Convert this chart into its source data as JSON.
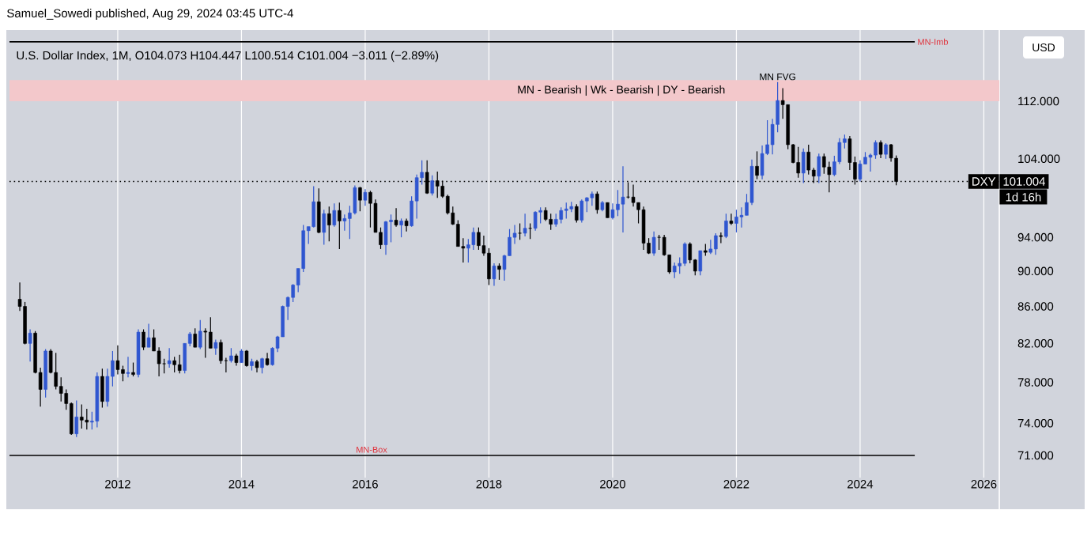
{
  "chart_data": {
    "type": "candlestick",
    "title": "U.S. Dollar Index, 1M,  O104.073  H104.447  L100.514  C101.004  −3.011 (−2.89%)",
    "annotations": [
      "Samuel_Sowedi published, Aug 29, 2024 03:45 UTC-4",
      "MN - Bearish | Wk - Bearish | DY - Bearish",
      {
        "text": "MN FVG",
        "x": "2022-09",
        "y": 114.8
      },
      "USD",
      "101.004",
      "1d 16h"
    ],
    "x": [
      "2010-06",
      "2010-07",
      "2010-08",
      "2010-09",
      "2010-10",
      "2010-11",
      "2010-12",
      "2011-01",
      "2011-02",
      "2011-03",
      "2011-04",
      "2011-05",
      "2011-06",
      "2011-07",
      "2011-08",
      "2011-09",
      "2011-10",
      "2011-11",
      "2011-12",
      "2012-01",
      "2012-02",
      "2012-03",
      "2012-04",
      "2012-05",
      "2012-06",
      "2012-07",
      "2012-08",
      "2012-09",
      "2012-10",
      "2012-11",
      "2012-12",
      "2013-01",
      "2013-02",
      "2013-03",
      "2013-04",
      "2013-05",
      "2013-06",
      "2013-07",
      "2013-08",
      "2013-09",
      "2013-10",
      "2013-11",
      "2013-12",
      "2014-01",
      "2014-02",
      "2014-03",
      "2014-04",
      "2014-05",
      "2014-06",
      "2014-07",
      "2014-08",
      "2014-09",
      "2014-10",
      "2014-11",
      "2014-12",
      "2015-01",
      "2015-02",
      "2015-03",
      "2015-04",
      "2015-05",
      "2015-06",
      "2015-07",
      "2015-08",
      "2015-09",
      "2015-10",
      "2015-11",
      "2015-12",
      "2016-01",
      "2016-02",
      "2016-03",
      "2016-04",
      "2016-05",
      "2016-06",
      "2016-07",
      "2016-08",
      "2016-09",
      "2016-10",
      "2016-11",
      "2016-12",
      "2017-01",
      "2017-02",
      "2017-03",
      "2017-04",
      "2017-05",
      "2017-06",
      "2017-07",
      "2017-08",
      "2017-09",
      "2017-10",
      "2017-11",
      "2017-12",
      "2018-01",
      "2018-02",
      "2018-03",
      "2018-04",
      "2018-05",
      "2018-06",
      "2018-07",
      "2018-08",
      "2018-09",
      "2018-10",
      "2018-11",
      "2018-12",
      "2019-01",
      "2019-02",
      "2019-03",
      "2019-04",
      "2019-05",
      "2019-06",
      "2019-07",
      "2019-08",
      "2019-09",
      "2019-10",
      "2019-11",
      "2019-12",
      "2020-01",
      "2020-02",
      "2020-03",
      "2020-04",
      "2020-05",
      "2020-06",
      "2020-07",
      "2020-08",
      "2020-09",
      "2020-10",
      "2020-11",
      "2020-12",
      "2021-01",
      "2021-02",
      "2021-03",
      "2021-04",
      "2021-05",
      "2021-06",
      "2021-07",
      "2021-08",
      "2021-09",
      "2021-10",
      "2021-11",
      "2021-12",
      "2022-01",
      "2022-02",
      "2022-03",
      "2022-04",
      "2022-05",
      "2022-06",
      "2022-07",
      "2022-08",
      "2022-09",
      "2022-10",
      "2022-11",
      "2022-12",
      "2023-01",
      "2023-02",
      "2023-03",
      "2023-04",
      "2023-05",
      "2023-06",
      "2023-07",
      "2023-08",
      "2023-09",
      "2023-10",
      "2023-11",
      "2023-12",
      "2024-01",
      "2024-02",
      "2024-03",
      "2024-04",
      "2024-05",
      "2024-06",
      "2024-07",
      "2024-08"
    ],
    "ohlc": [
      [
        86.8,
        88.7,
        85.5,
        86.0
      ],
      [
        86.0,
        86.5,
        81.9,
        82.0
      ],
      [
        82.0,
        83.5,
        80.1,
        83.1
      ],
      [
        83.1,
        83.3,
        78.9,
        79.0
      ],
      [
        79.0,
        79.5,
        75.6,
        77.3
      ],
      [
        77.3,
        81.4,
        76.5,
        81.2
      ],
      [
        81.2,
        81.4,
        78.9,
        79.0
      ],
      [
        79.0,
        81.0,
        77.3,
        77.6
      ],
      [
        77.6,
        78.5,
        76.1,
        76.9
      ],
      [
        76.9,
        77.3,
        75.3,
        75.9
      ],
      [
        75.9,
        76.0,
        72.9,
        73.0
      ],
      [
        73.0,
        76.2,
        72.7,
        74.6
      ],
      [
        74.6,
        75.8,
        73.5,
        74.3
      ],
      [
        74.3,
        75.4,
        73.4,
        74.1
      ],
      [
        74.1,
        75.1,
        73.4,
        74.2
      ],
      [
        74.2,
        79.0,
        73.6,
        78.6
      ],
      [
        78.6,
        79.4,
        75.5,
        76.1
      ],
      [
        76.1,
        79.4,
        75.6,
        78.6
      ],
      [
        78.6,
        81.2,
        77.6,
        80.2
      ],
      [
        80.2,
        81.8,
        78.8,
        79.3
      ],
      [
        79.3,
        79.7,
        78.1,
        78.9
      ],
      [
        78.9,
        80.6,
        78.5,
        79.0
      ],
      [
        79.0,
        80.0,
        78.6,
        78.8
      ],
      [
        78.8,
        83.5,
        78.5,
        83.2
      ],
      [
        83.2,
        83.5,
        81.3,
        81.6
      ],
      [
        81.6,
        84.1,
        81.6,
        82.6
      ],
      [
        82.6,
        83.5,
        81.2,
        81.2
      ],
      [
        81.2,
        81.6,
        78.6,
        79.9
      ],
      [
        79.9,
        80.4,
        78.9,
        79.9
      ],
      [
        79.9,
        81.5,
        79.5,
        80.2
      ],
      [
        80.2,
        80.6,
        79.0,
        79.8
      ],
      [
        79.8,
        80.8,
        78.9,
        79.2
      ],
      [
        79.2,
        82.0,
        78.9,
        82.0
      ],
      [
        82.0,
        83.2,
        81.7,
        83.0
      ],
      [
        83.0,
        83.6,
        81.6,
        81.6
      ],
      [
        81.6,
        84.5,
        81.4,
        83.3
      ],
      [
        83.3,
        83.6,
        80.5,
        83.2
      ],
      [
        83.2,
        84.8,
        81.5,
        81.5
      ],
      [
        81.5,
        82.4,
        80.8,
        82.1
      ],
      [
        82.1,
        82.4,
        79.9,
        80.2
      ],
      [
        80.2,
        80.5,
        79.0,
        80.2
      ],
      [
        80.2,
        81.5,
        80.0,
        80.7
      ],
      [
        80.7,
        80.9,
        79.7,
        80.0
      ],
      [
        80.0,
        81.4,
        80.0,
        81.2
      ],
      [
        81.2,
        81.3,
        79.6,
        79.7
      ],
      [
        79.7,
        80.4,
        79.2,
        80.1
      ],
      [
        80.1,
        80.3,
        79.0,
        79.5
      ],
      [
        79.5,
        80.5,
        78.9,
        80.4
      ],
      [
        80.4,
        81.0,
        79.7,
        79.8
      ],
      [
        79.8,
        81.6,
        79.7,
        81.5
      ],
      [
        81.5,
        82.8,
        81.1,
        82.7
      ],
      [
        82.7,
        86.1,
        82.7,
        86.0
      ],
      [
        86.0,
        87.1,
        84.5,
        87.0
      ],
      [
        87.0,
        88.5,
        86.5,
        88.4
      ],
      [
        88.4,
        90.3,
        87.6,
        90.3
      ],
      [
        90.3,
        95.5,
        89.9,
        94.8
      ],
      [
        94.8,
        95.3,
        93.2,
        95.3
      ],
      [
        95.3,
        100.4,
        95.2,
        98.4
      ],
      [
        98.4,
        100.1,
        94.5,
        94.6
      ],
      [
        94.6,
        97.4,
        93.1,
        96.9
      ],
      [
        96.9,
        97.8,
        93.5,
        95.5
      ],
      [
        95.5,
        98.2,
        95.3,
        97.3
      ],
      [
        97.3,
        98.3,
        92.6,
        96.0
      ],
      [
        96.0,
        96.8,
        94.8,
        96.3
      ],
      [
        96.3,
        97.9,
        93.8,
        97.0
      ],
      [
        97.0,
        100.5,
        96.8,
        100.2
      ],
      [
        100.2,
        100.3,
        97.2,
        98.6
      ],
      [
        98.6,
        100.0,
        97.9,
        99.6
      ],
      [
        99.6,
        99.8,
        95.2,
        98.2
      ],
      [
        98.2,
        98.7,
        94.6,
        94.6
      ],
      [
        94.6,
        95.2,
        92.6,
        93.1
      ],
      [
        93.1,
        96.0,
        91.9,
        95.9
      ],
      [
        95.9,
        96.8,
        93.4,
        96.1
      ],
      [
        96.1,
        97.6,
        95.3,
        95.5
      ],
      [
        95.5,
        96.3,
        94.0,
        96.0
      ],
      [
        96.0,
        96.3,
        94.7,
        95.4
      ],
      [
        95.4,
        99.1,
        95.3,
        98.5
      ],
      [
        98.5,
        101.9,
        96.3,
        101.5
      ],
      [
        101.5,
        103.8,
        100.6,
        102.2
      ],
      [
        102.2,
        103.8,
        99.4,
        99.5
      ],
      [
        99.5,
        101.8,
        99.2,
        101.1
      ],
      [
        101.1,
        102.3,
        98.9,
        100.4
      ],
      [
        100.4,
        101.1,
        98.9,
        99.1
      ],
      [
        99.1,
        99.3,
        96.8,
        97.0
      ],
      [
        97.0,
        97.8,
        95.5,
        95.6
      ],
      [
        95.6,
        96.1,
        92.9,
        92.9
      ],
      [
        92.9,
        93.9,
        91.0,
        92.7
      ],
      [
        92.7,
        93.8,
        91.0,
        93.1
      ],
      [
        93.1,
        95.2,
        92.5,
        94.6
      ],
      [
        94.6,
        95.2,
        92.5,
        93.0
      ],
      [
        93.0,
        94.2,
        91.8,
        92.1
      ],
      [
        92.1,
        92.7,
        88.4,
        89.1
      ],
      [
        89.1,
        90.9,
        88.3,
        90.6
      ],
      [
        90.6,
        90.9,
        89.0,
        90.2
      ],
      [
        90.2,
        91.9,
        88.9,
        91.8
      ],
      [
        91.8,
        95.0,
        91.8,
        94.0
      ],
      [
        94.0,
        95.5,
        93.2,
        94.5
      ],
      [
        94.5,
        95.7,
        93.7,
        94.5
      ],
      [
        94.5,
        96.9,
        94.1,
        95.1
      ],
      [
        95.1,
        95.7,
        93.8,
        95.1
      ],
      [
        95.1,
        97.2,
        94.8,
        97.1
      ],
      [
        97.1,
        97.7,
        95.7,
        97.3
      ],
      [
        97.3,
        97.7,
        96.0,
        96.2
      ],
      [
        96.2,
        96.9,
        94.9,
        95.6
      ],
      [
        95.6,
        96.9,
        95.3,
        96.2
      ],
      [
        96.2,
        97.7,
        95.7,
        97.3
      ],
      [
        97.3,
        98.3,
        96.3,
        97.5
      ],
      [
        97.5,
        98.4,
        97.1,
        97.8
      ],
      [
        97.8,
        98.1,
        95.8,
        96.1
      ],
      [
        96.1,
        98.7,
        95.8,
        98.5
      ],
      [
        98.5,
        99.0,
        97.1,
        98.9
      ],
      [
        98.9,
        99.7,
        97.9,
        99.4
      ],
      [
        99.4,
        99.7,
        96.9,
        97.4
      ],
      [
        97.4,
        98.5,
        97.2,
        98.3
      ],
      [
        98.3,
        98.3,
        96.4,
        96.4
      ],
      [
        96.4,
        98.2,
        96.2,
        97.4
      ],
      [
        97.4,
        99.9,
        96.6,
        98.1
      ],
      [
        98.1,
        103.0,
        94.6,
        99.0
      ],
      [
        99.0,
        100.9,
        98.8,
        99.0
      ],
      [
        99.0,
        100.6,
        97.8,
        98.3
      ],
      [
        98.3,
        98.3,
        95.7,
        97.4
      ],
      [
        97.4,
        97.8,
        92.5,
        93.3
      ],
      [
        93.3,
        93.9,
        92.0,
        92.1
      ],
      [
        92.1,
        94.7,
        91.8,
        94.0
      ],
      [
        94.0,
        94.3,
        92.5,
        94.0
      ],
      [
        94.0,
        94.3,
        91.8,
        91.9
      ],
      [
        91.9,
        91.9,
        89.7,
        89.9
      ],
      [
        89.9,
        91.0,
        89.2,
        90.6
      ],
      [
        90.6,
        91.6,
        89.7,
        90.9
      ],
      [
        90.9,
        93.4,
        90.6,
        93.2
      ],
      [
        93.2,
        93.4,
        90.9,
        91.3
      ],
      [
        91.3,
        91.4,
        89.5,
        90.0
      ],
      [
        90.0,
        92.4,
        89.5,
        92.4
      ],
      [
        92.4,
        93.2,
        91.8,
        92.2
      ],
      [
        92.2,
        93.7,
        92.0,
        92.6
      ],
      [
        92.6,
        94.5,
        91.9,
        94.2
      ],
      [
        94.2,
        94.6,
        93.3,
        94.1
      ],
      [
        94.1,
        96.9,
        93.9,
        96.0
      ],
      [
        96.0,
        96.9,
        95.5,
        95.7
      ],
      [
        95.7,
        97.4,
        94.6,
        96.5
      ],
      [
        96.5,
        97.7,
        95.2,
        96.7
      ],
      [
        96.7,
        99.4,
        96.7,
        98.3
      ],
      [
        98.3,
        103.9,
        98.0,
        103.0
      ],
      [
        103.0,
        105.0,
        101.3,
        101.8
      ],
      [
        101.8,
        105.8,
        101.3,
        104.7
      ],
      [
        104.7,
        109.3,
        104.5,
        105.9
      ],
      [
        105.9,
        109.5,
        104.6,
        108.7
      ],
      [
        108.7,
        114.8,
        107.6,
        112.1
      ],
      [
        112.1,
        113.9,
        109.5,
        111.5
      ],
      [
        111.5,
        111.5,
        105.3,
        105.9
      ],
      [
        105.9,
        106.0,
        103.4,
        103.5
      ],
      [
        103.5,
        105.6,
        101.5,
        102.1
      ],
      [
        102.1,
        105.4,
        100.8,
        104.9
      ],
      [
        104.9,
        105.9,
        101.9,
        102.5
      ],
      [
        102.5,
        102.8,
        100.8,
        101.7
      ],
      [
        101.7,
        104.7,
        100.8,
        104.3
      ],
      [
        104.3,
        104.7,
        102.0,
        102.9
      ],
      [
        102.9,
        103.6,
        99.6,
        101.9
      ],
      [
        101.9,
        104.4,
        101.7,
        103.6
      ],
      [
        103.6,
        106.8,
        103.3,
        106.2
      ],
      [
        106.2,
        107.3,
        105.4,
        106.7
      ],
      [
        106.7,
        107.1,
        102.5,
        103.5
      ],
      [
        103.5,
        104.3,
        100.6,
        101.3
      ],
      [
        101.3,
        103.8,
        101.0,
        103.3
      ],
      [
        103.3,
        104.9,
        103.3,
        104.2
      ],
      [
        104.2,
        104.7,
        102.3,
        104.5
      ],
      [
        104.5,
        106.5,
        104.0,
        106.2
      ],
      [
        106.2,
        106.5,
        104.1,
        104.6
      ],
      [
        104.6,
        106.1,
        104.0,
        105.9
      ],
      [
        105.9,
        106.0,
        103.6,
        104.1
      ],
      [
        104.073,
        104.447,
        100.514,
        101.004
      ]
    ],
    "colors": [
      "#000000",
      "#000000",
      "#2f56d0",
      "#000000",
      "#000000",
      "#2f56d0",
      "#000000",
      "#000000",
      "#000000",
      "#000000",
      "#000000",
      "#2f56d0",
      "#000000",
      "#000000",
      "#2f56d0",
      "#2f56d0",
      "#000000",
      "#2f56d0",
      "#2f56d0",
      "#000000",
      "#000000",
      "#2f56d0",
      "#000000",
      "#2f56d0",
      "#000000",
      "#2f56d0",
      "#000000",
      "#000000",
      "#000000",
      "#2f56d0",
      "#000000",
      "#000000",
      "#2f56d0",
      "#2f56d0",
      "#000000",
      "#2f56d0",
      "#000000",
      "#000000",
      "#2f56d0",
      "#000000",
      "#000000",
      "#2f56d0",
      "#000000",
      "#2f56d0",
      "#000000",
      "#2f56d0",
      "#000000",
      "#2f56d0",
      "#000000",
      "#2f56d0",
      "#2f56d0",
      "#2f56d0",
      "#2f56d0",
      "#2f56d0",
      "#2f56d0",
      "#2f56d0",
      "#2f56d0",
      "#2f56d0",
      "#000000",
      "#2f56d0",
      "#000000",
      "#2f56d0",
      "#000000",
      "#2f56d0",
      "#2f56d0",
      "#2f56d0",
      "#000000",
      "#2f56d0",
      "#000000",
      "#000000",
      "#000000",
      "#2f56d0",
      "#2f56d0",
      "#000000",
      "#2f56d0",
      "#000000",
      "#2f56d0",
      "#2f56d0",
      "#2f56d0",
      "#000000",
      "#2f56d0",
      "#000000",
      "#000000",
      "#000000",
      "#000000",
      "#000000",
      "#000000",
      "#2f56d0",
      "#2f56d0",
      "#000000",
      "#000000",
      "#000000",
      "#2f56d0",
      "#000000",
      "#2f56d0",
      "#2f56d0",
      "#2f56d0",
      "#000000",
      "#2f56d0",
      "#000000",
      "#2f56d0",
      "#2f56d0",
      "#000000",
      "#000000",
      "#2f56d0",
      "#2f56d0",
      "#2f56d0",
      "#2f56d0",
      "#000000",
      "#2f56d0",
      "#2f56d0",
      "#2f56d0",
      "#000000",
      "#2f56d0",
      "#000000",
      "#2f56d0",
      "#2f56d0",
      "#2f56d0",
      "#000000",
      "#000000",
      "#000000",
      "#000000",
      "#000000",
      "#2f56d0",
      "#000000",
      "#000000",
      "#000000",
      "#2f56d0",
      "#2f56d0",
      "#2f56d0",
      "#000000",
      "#000000",
      "#2f56d0",
      "#000000",
      "#2f56d0",
      "#2f56d0",
      "#000000",
      "#2f56d0",
      "#000000",
      "#2f56d0",
      "#2f56d0",
      "#2f56d0",
      "#2f56d0",
      "#000000",
      "#2f56d0",
      "#2f56d0",
      "#2f56d0",
      "#2f56d0",
      "#000000",
      "#000000",
      "#000000",
      "#000000",
      "#2f56d0",
      "#000000",
      "#000000",
      "#2f56d0",
      "#000000",
      "#000000",
      "#2f56d0",
      "#2f56d0",
      "#2f56d0",
      "#000000",
      "#000000",
      "#2f56d0",
      "#2f56d0",
      "#2f56d0",
      "#2f56d0",
      "#000000",
      "#2f56d0",
      "#000000",
      "#000000"
    ],
    "xlim": [
      "2010-04",
      "2026-04"
    ],
    "xticks": [
      "2012",
      "2014",
      "2016",
      "2018",
      "2020",
      "2022",
      "2024",
      "2026"
    ],
    "log": "y",
    "ylim": [
      69,
      123
    ],
    "yticks": [
      {
        "value": 71,
        "label": "71.000"
      },
      {
        "value": 74,
        "label": "74.000"
      },
      {
        "value": 78,
        "label": "78.000"
      },
      {
        "value": 82,
        "label": "82.000"
      },
      {
        "value": 86,
        "label": "86.000"
      },
      {
        "value": 90,
        "label": "90.000"
      },
      {
        "value": 94,
        "label": "94.000"
      },
      {
        "value": 104,
        "label": "104.000"
      },
      {
        "value": 112,
        "label": "112.000"
      }
    ],
    "grid": "x",
    "ref_lines": [
      {
        "axis": "y",
        "value": 101.004,
        "label": "DXY",
        "color": "#000000",
        "line_style": "dotted"
      },
      {
        "axis": "y",
        "value": 71,
        "label": "MN-Box",
        "color": "#000000",
        "line_style": "solid"
      },
      {
        "axis": "y",
        "value": 120.9,
        "label": "MN-Imb",
        "color": "#000000",
        "line_style": "solid"
      }
    ],
    "bands": [
      {
        "axis": "y",
        "from": 112,
        "to": 115.1,
        "color": "#f3c8cb"
      }
    ]
  }
}
